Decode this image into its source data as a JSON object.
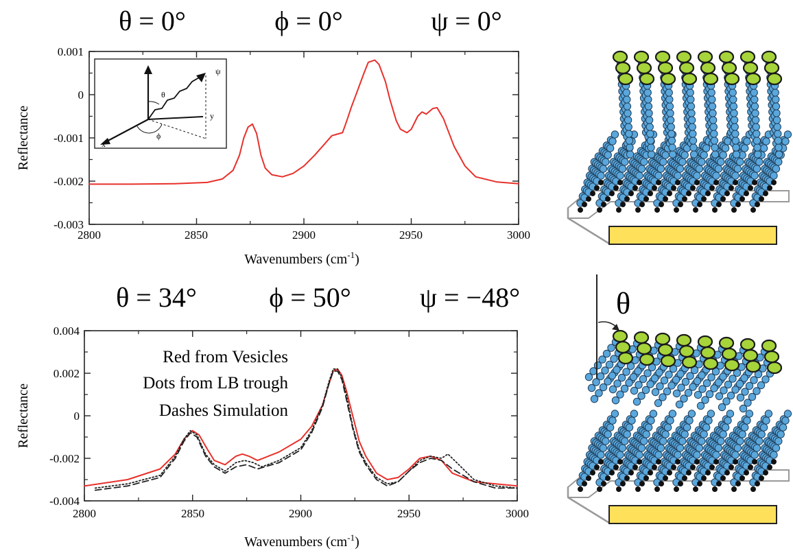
{
  "chart_data": [
    {
      "type": "line",
      "angles": [
        "θ = 0°",
        "ϕ = 0°",
        "ψ = 0°"
      ],
      "xlabel_main": "Wavenumbers (cm",
      "xlabel_sup": "-1",
      "xlabel_end": ")",
      "ylabel": "Reflectance",
      "xlim": [
        2800,
        3000
      ],
      "ylim": [
        -0.003,
        0.001
      ],
      "xticks": [
        "2800",
        "2850",
        "2900",
        "2950",
        "3000"
      ],
      "yticks": [
        "0.001",
        "0",
        "-0.001",
        "-0.002",
        "-0.003"
      ],
      "inset_labels": {
        "theta": "θ",
        "phi": "ϕ",
        "x": "x",
        "y": "y",
        "psi": "ψ"
      },
      "series": [
        {
          "color": "#e8302a",
          "style": "solid",
          "x": [
            2800,
            2820,
            2840,
            2855,
            2862,
            2867,
            2870,
            2872,
            2874,
            2876,
            2878,
            2880,
            2882,
            2885,
            2890,
            2895,
            2900,
            2905,
            2910,
            2913,
            2915,
            2918,
            2920,
            2922,
            2925,
            2928,
            2930,
            2933,
            2935,
            2938,
            2940,
            2943,
            2945,
            2948,
            2950,
            2953,
            2955,
            2957,
            2960,
            2962,
            2965,
            2970,
            2975,
            2980,
            2990,
            3000
          ],
          "y": [
            -0.00207,
            -0.00207,
            -0.00206,
            -0.00203,
            -0.00195,
            -0.00175,
            -0.0014,
            -0.001,
            -0.00075,
            -0.00068,
            -0.0009,
            -0.0014,
            -0.0017,
            -0.00185,
            -0.0019,
            -0.00182,
            -0.00165,
            -0.0014,
            -0.00112,
            -0.00095,
            -0.00092,
            -0.00088,
            -0.0006,
            -0.0003,
            0.0001,
            0.0005,
            0.00075,
            0.0008,
            0.0007,
            0.0003,
            -0.0001,
            -0.0006,
            -0.0008,
            -0.00088,
            -0.0008,
            -0.0005,
            -0.0004,
            -0.00045,
            -0.00032,
            -0.0003,
            -0.00055,
            -0.0012,
            -0.00165,
            -0.0019,
            -0.00202,
            -0.00206
          ]
        }
      ]
    },
    {
      "type": "line",
      "angles": [
        "θ = 34°",
        "ϕ = 50°",
        "ψ = −48°"
      ],
      "xlabel_main": "Wavenumbers (cm",
      "xlabel_sup": "-1",
      "xlabel_end": ")",
      "ylabel": "Reflectance",
      "xlim": [
        2800,
        3000
      ],
      "ylim": [
        -0.004,
        0.004
      ],
      "xticks": [
        "2800",
        "2850",
        "2900",
        "2950",
        "3000"
      ],
      "yticks": [
        "0.004",
        "0.002",
        "0",
        "-0.002",
        "-0.004"
      ],
      "legend_lines": [
        "Red from Vesicles",
        "Dots from LB trough",
        "Dashes Simulation"
      ],
      "series": [
        {
          "color": "#e8302a",
          "style": "solid",
          "x": [
            2800,
            2820,
            2835,
            2842,
            2846,
            2850,
            2853,
            2857,
            2860,
            2865,
            2870,
            2873,
            2876,
            2880,
            2890,
            2900,
            2905,
            2910,
            2913,
            2915,
            2917,
            2919,
            2921,
            2924,
            2927,
            2930,
            2935,
            2940,
            2945,
            2950,
            2955,
            2960,
            2965,
            2970,
            2980,
            2990,
            3000
          ],
          "y": [
            -0.0033,
            -0.003,
            -0.0025,
            -0.0018,
            -0.0011,
            -0.0007,
            -0.0009,
            -0.0016,
            -0.0021,
            -0.0023,
            -0.0019,
            -0.0018,
            -0.0019,
            -0.0021,
            -0.0017,
            -0.0011,
            -0.0005,
            0.0005,
            0.0015,
            0.0021,
            0.0022,
            0.0019,
            0.0012,
            0.0,
            -0.0012,
            -0.0019,
            -0.0027,
            -0.003,
            -0.0029,
            -0.0025,
            -0.002,
            -0.0019,
            -0.0021,
            -0.0027,
            -0.0031,
            -0.0032,
            -0.0033
          ]
        },
        {
          "color": "#222222",
          "style": "dotted",
          "x": [
            2805,
            2820,
            2835,
            2842,
            2846,
            2849,
            2852,
            2856,
            2860,
            2865,
            2870,
            2874,
            2878,
            2882,
            2890,
            2900,
            2905,
            2910,
            2913,
            2915,
            2917,
            2919,
            2921,
            2924,
            2927,
            2930,
            2935,
            2940,
            2945,
            2950,
            2955,
            2960,
            2965,
            2968,
            2972,
            2980,
            2990,
            3000
          ],
          "y": [
            -0.0034,
            -0.0032,
            -0.0028,
            -0.0019,
            -0.0011,
            -0.0007,
            -0.0009,
            -0.0018,
            -0.0023,
            -0.0026,
            -0.0022,
            -0.0021,
            -0.0022,
            -0.0024,
            -0.0021,
            -0.0015,
            -0.0007,
            0.0005,
            0.0016,
            0.0022,
            0.0022,
            0.0018,
            0.001,
            -0.0005,
            -0.0016,
            -0.0022,
            -0.0029,
            -0.0032,
            -0.0031,
            -0.0026,
            -0.0021,
            -0.0019,
            -0.002,
            -0.0018,
            -0.0022,
            -0.003,
            -0.0033,
            -0.0034
          ]
        },
        {
          "color": "#222222",
          "style": "dashed",
          "x": [
            2805,
            2820,
            2835,
            2842,
            2846,
            2849,
            2852,
            2856,
            2860,
            2865,
            2870,
            2875,
            2880,
            2890,
            2900,
            2905,
            2910,
            2913,
            2915,
            2917,
            2919,
            2921,
            2924,
            2927,
            2930,
            2935,
            2940,
            2945,
            2950,
            2955,
            2960,
            2965,
            2970,
            2980,
            2990,
            3000
          ],
          "y": [
            -0.0035,
            -0.0033,
            -0.0029,
            -0.002,
            -0.0012,
            -0.0008,
            -0.001,
            -0.0019,
            -0.0024,
            -0.0027,
            -0.0024,
            -0.0023,
            -0.0025,
            -0.0022,
            -0.0016,
            -0.0008,
            0.0004,
            0.0015,
            0.0021,
            0.0021,
            0.0017,
            0.0008,
            -0.0006,
            -0.0017,
            -0.0023,
            -0.003,
            -0.0033,
            -0.0031,
            -0.0026,
            -0.0022,
            -0.002,
            -0.0021,
            -0.0025,
            -0.0031,
            -0.0034,
            -0.0034
          ]
        }
      ]
    }
  ],
  "schematic": {
    "theta_label": "θ",
    "colors": {
      "headgroup": "#a6d43a",
      "chain": "#5aa7dc",
      "gold": "#ffe05a",
      "substrate": "#ffffff"
    }
  }
}
